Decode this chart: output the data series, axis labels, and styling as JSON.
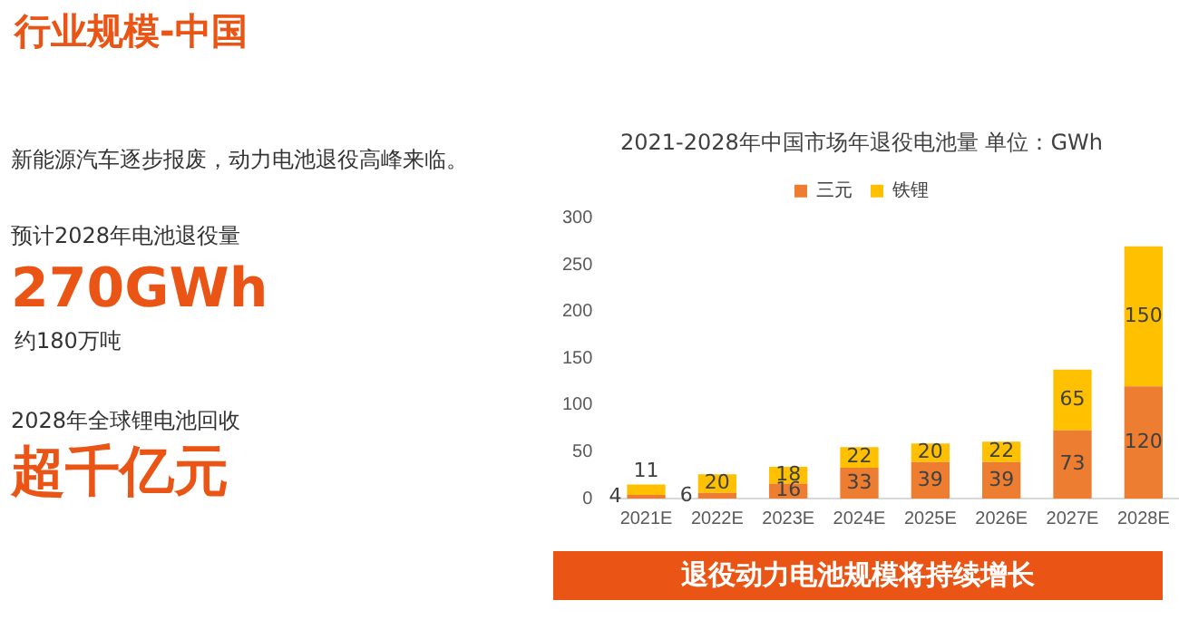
{
  "chart_data": {
    "type": "bar",
    "title": "2021-2028年中国市场年退役电池量 单位：GWh",
    "categories": [
      "2021E",
      "2022E",
      "2023E",
      "2024E",
      "2025E",
      "2026E",
      "2027E",
      "2028E"
    ],
    "series": [
      {
        "name": "三元",
        "color": "#ed7d31",
        "values": [
          4,
          6,
          16,
          33,
          39,
          39,
          73,
          120
        ]
      },
      {
        "name": "铁锂",
        "color": "#ffc000",
        "values": [
          11,
          20,
          18,
          22,
          20,
          22,
          65,
          150
        ]
      }
    ],
    "stacked": true,
    "ylim": [
      0,
      300
    ],
    "yticks": [
      0,
      50,
      100,
      150,
      200,
      250,
      300
    ],
    "grid": false,
    "legend": "top",
    "data_labels": true,
    "annotations": [
      "行业规模-中国",
      "新能源汽车逐步报废，动力电池退役高峰来临。",
      "预计2028年电池退役量",
      "270GWh",
      "约180万吨",
      "2028年全球锂电池回收",
      "超千亿元",
      "退役动力电池规模将持续增长"
    ]
  }
}
